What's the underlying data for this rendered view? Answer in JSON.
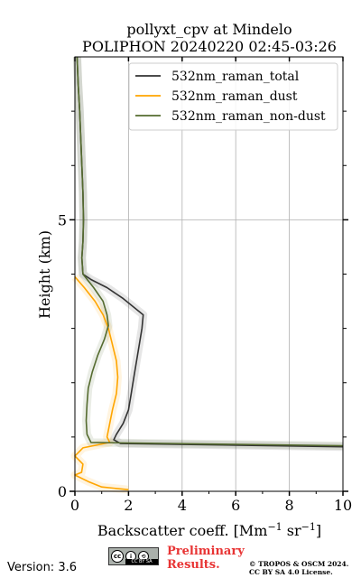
{
  "chart_data": {
    "type": "line",
    "title": "pollyxt_cpv at Mindelo",
    "subtitle": "POLIPHON 20240220 02:45-03:26",
    "xlabel": "Backscatter coeff. [Mm",
    "xlabel_sup1": "−1",
    "xlabel_mid": " sr",
    "xlabel_sup2": "−1",
    "xlabel_end": "]",
    "ylabel": "Height (km)",
    "xlim": [
      0,
      10
    ],
    "ylim": [
      0,
      8
    ],
    "x_ticks": [
      "0",
      "2",
      "4",
      "6",
      "8",
      "10"
    ],
    "y_ticks": [
      "0",
      "5"
    ],
    "grid": true,
    "legend_position": "top-right",
    "series": [
      {
        "name": "532nm_raman_total",
        "color": "#333333",
        "points": [
          [
            0.08,
            8.0
          ],
          [
            0.12,
            7.5
          ],
          [
            0.18,
            7.0
          ],
          [
            0.22,
            6.5
          ],
          [
            0.26,
            6.0
          ],
          [
            0.3,
            5.5
          ],
          [
            0.32,
            5.0
          ],
          [
            0.3,
            4.6
          ],
          [
            0.26,
            4.3
          ],
          [
            0.3,
            4.0
          ],
          [
            0.6,
            3.9
          ],
          [
            1.2,
            3.75
          ],
          [
            1.8,
            3.55
          ],
          [
            2.3,
            3.35
          ],
          [
            2.55,
            3.25
          ],
          [
            2.5,
            3.0
          ],
          [
            2.4,
            2.7
          ],
          [
            2.3,
            2.4
          ],
          [
            2.2,
            2.1
          ],
          [
            2.1,
            1.8
          ],
          [
            2.0,
            1.5
          ],
          [
            1.8,
            1.25
          ],
          [
            1.55,
            1.05
          ],
          [
            1.45,
            0.95
          ],
          [
            1.7,
            0.88
          ],
          [
            10.0,
            0.82
          ]
        ]
      },
      {
        "name": "532nm_raman_dust",
        "color": "#ffa500",
        "points": [
          [
            0.0,
            3.95
          ],
          [
            0.35,
            3.75
          ],
          [
            0.75,
            3.5
          ],
          [
            1.05,
            3.25
          ],
          [
            1.25,
            3.0
          ],
          [
            1.4,
            2.7
          ],
          [
            1.55,
            2.4
          ],
          [
            1.6,
            2.1
          ],
          [
            1.55,
            1.8
          ],
          [
            1.4,
            1.5
          ],
          [
            1.3,
            1.25
          ],
          [
            1.2,
            1.0
          ],
          [
            1.3,
            0.9
          ],
          [
            0.3,
            0.8
          ],
          [
            0.0,
            0.65
          ],
          [
            0.3,
            0.5
          ],
          [
            0.25,
            0.35
          ],
          [
            0.0,
            0.3
          ],
          [
            0.5,
            0.18
          ],
          [
            1.0,
            0.08
          ],
          [
            2.0,
            0.03
          ]
        ]
      },
      {
        "name": "532nm_raman_non-dust",
        "color": "#556b2f",
        "points": [
          [
            0.08,
            8.0
          ],
          [
            0.12,
            7.5
          ],
          [
            0.18,
            7.0
          ],
          [
            0.22,
            6.5
          ],
          [
            0.26,
            6.0
          ],
          [
            0.3,
            5.5
          ],
          [
            0.32,
            5.0
          ],
          [
            0.3,
            4.6
          ],
          [
            0.26,
            4.3
          ],
          [
            0.3,
            4.0
          ],
          [
            0.7,
            3.75
          ],
          [
            1.05,
            3.5
          ],
          [
            1.2,
            3.25
          ],
          [
            1.25,
            3.05
          ],
          [
            1.1,
            2.8
          ],
          [
            0.85,
            2.5
          ],
          [
            0.65,
            2.2
          ],
          [
            0.5,
            1.9
          ],
          [
            0.45,
            1.6
          ],
          [
            0.42,
            1.3
          ],
          [
            0.45,
            1.05
          ],
          [
            0.6,
            0.9
          ],
          [
            10.0,
            0.84
          ]
        ]
      }
    ]
  },
  "footer": {
    "version": "Version: 3.6",
    "license_badge": "CC BY SA",
    "preliminary_line1": "Preliminary",
    "preliminary_line2": "Results.",
    "copyright_line1": "© TROPOS & OSCM 2024.",
    "copyright_line2": "CC BY SA 4.0 License."
  }
}
